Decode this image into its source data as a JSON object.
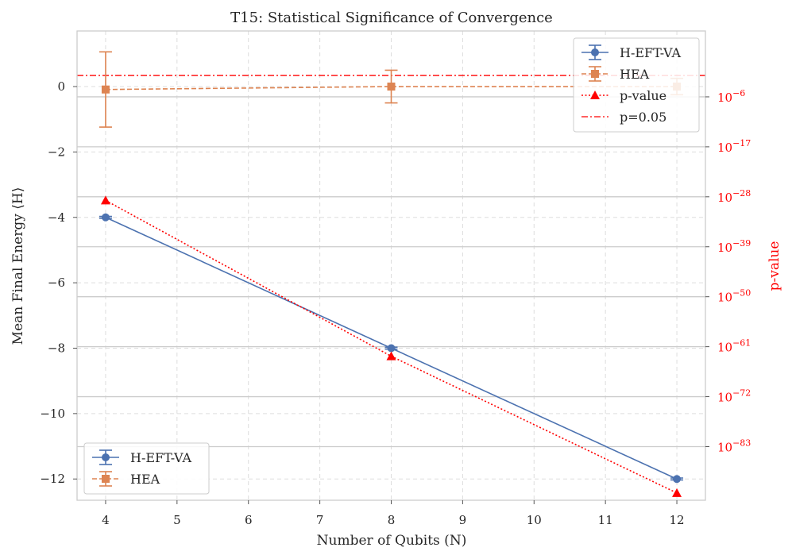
{
  "chart_data": {
    "type": "line",
    "title": "T15: Statistical Significance of Convergence",
    "xlabel": "Number of Qubits (N)",
    "ylabel": "Mean Final Energy ⟨H⟩",
    "y2label": "p-value",
    "xlim": [
      3.6,
      12.4
    ],
    "ylim": [
      -12.65,
      1.7
    ],
    "x_ticks": [
      4,
      5,
      6,
      7,
      8,
      9,
      10,
      11,
      12
    ],
    "y_ticks": [
      0,
      -2,
      -4,
      -6,
      -8,
      -10,
      -12
    ],
    "y_tick_labels": [
      "0",
      "−2",
      "−4",
      "−6",
      "−8",
      "−10",
      "−12"
    ],
    "y2_scale": "log",
    "y2_log_range": [
      -94.8,
      8.5
    ],
    "y2_tick_exponents": [
      -6,
      -17,
      -28,
      -39,
      -50,
      -61,
      -72,
      -83
    ],
    "y2_tick_base": "10",
    "y2_tick_labels": [
      "−6",
      "−17",
      "−28",
      "−39",
      "−50",
      "−61",
      "−72",
      "−83"
    ],
    "grid": true,
    "series": [
      {
        "name": "H-EFT-VA",
        "axis": "left",
        "color": "#4c72b0",
        "marker": "circle",
        "linestyle": "solid",
        "x": [
          4,
          8,
          12
        ],
        "y": [
          -4.0,
          -8.0,
          -12.0
        ],
        "yerr": [
          0.03,
          0.03,
          0.03
        ]
      },
      {
        "name": "HEA",
        "axis": "left",
        "color": "#dd8452",
        "marker": "square",
        "linestyle": "dashed",
        "x": [
          4,
          8,
          12
        ],
        "y": [
          -0.09,
          0.0,
          0.0
        ],
        "yerr": [
          1.15,
          0.5,
          0.25
        ]
      },
      {
        "name": "p-value",
        "axis": "right",
        "color": "#ff0000",
        "marker": "triangle",
        "linestyle": "dotted",
        "x": [
          4,
          8,
          12
        ],
        "log10_y": [
          -28.8,
          -63.1,
          -93.2
        ]
      }
    ],
    "reference_line": {
      "name": "p=0.05",
      "log10_y": -1.3,
      "color": "#ff0000",
      "linestyle": "dashdot"
    },
    "legend_upper": {
      "position": "top-right",
      "entries": [
        "H-EFT-VA",
        "HEA",
        "p-value",
        "p=0.05"
      ]
    },
    "legend_lower": {
      "position": "bottom-left",
      "entries": [
        "H-EFT-VA",
        "HEA"
      ]
    }
  }
}
